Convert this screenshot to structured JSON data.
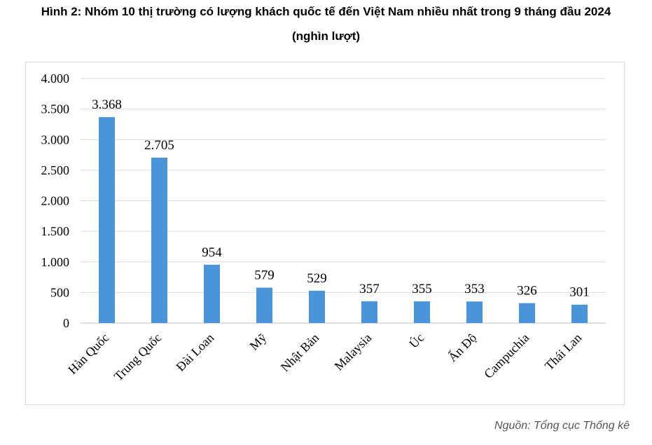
{
  "header": {
    "title_line1": "Hình 2: Nhóm 10 thị trường có lượng khách quốc tế đến Việt Nam nhiều nhất trong 9 tháng đầu 2024",
    "title_line2": "(nghìn lượt)"
  },
  "footer": {
    "source": "Nguồn: Tổng cục Thống kê"
  },
  "colors": {
    "bar": "#4a95d9",
    "grid": "#d9d9d9",
    "axis": "#bfbfbf"
  },
  "chart_data": {
    "type": "bar",
    "categories": [
      "Hàn Quốc",
      "Trung Quốc",
      "Đài Loan",
      "Mỹ",
      "Nhật Bản",
      "Malaysia",
      "Úc",
      "Ấn Độ",
      "Campuchia",
      "Thái Lan"
    ],
    "values": [
      3368,
      2705,
      954,
      579,
      529,
      357,
      355,
      353,
      326,
      301
    ],
    "value_labels": [
      "3.368",
      "2.705",
      "954",
      "579",
      "529",
      "357",
      "355",
      "353",
      "326",
      "301"
    ],
    "ylim": [
      0,
      4000
    ],
    "yticks": [
      0,
      500,
      1000,
      1500,
      2000,
      2500,
      3000,
      3500,
      4000
    ],
    "ytick_labels": [
      "0",
      "500",
      "1.000",
      "1.500",
      "2.000",
      "2.500",
      "3.000",
      "3.500",
      "4.000"
    ],
    "grid": true,
    "legend": "none"
  }
}
